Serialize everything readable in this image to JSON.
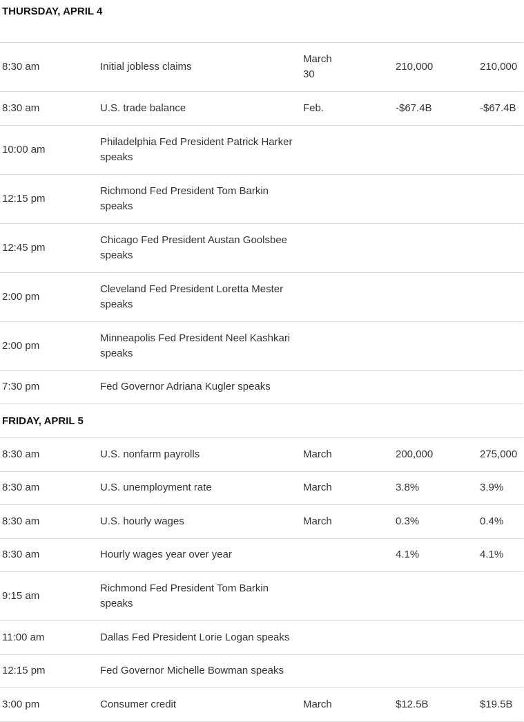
{
  "days": [
    {
      "title": "THURSDAY, APRIL 4",
      "rows": [
        {
          "time": "8:30 am",
          "event": "Initial jobless claims",
          "period": "March 30",
          "forecast": "210,000",
          "previous": "210,000"
        },
        {
          "time": "8:30 am",
          "event": "U.S. trade balance",
          "period": "Feb.",
          "forecast": "-$67.4B",
          "previous": "-$67.4B"
        },
        {
          "time": "10:00 am",
          "event": "Philadelphia Fed President Patrick Harker speaks",
          "period": "",
          "forecast": "",
          "previous": ""
        },
        {
          "time": "12:15 pm",
          "event": "Richmond Fed President Tom Barkin speaks",
          "period": "",
          "forecast": "",
          "previous": ""
        },
        {
          "time": "12:45 pm",
          "event": "Chicago Fed President Austan Goolsbee speaks",
          "period": "",
          "forecast": "",
          "previous": ""
        },
        {
          "time": "2:00 pm",
          "event": "Cleveland Fed President Loretta Mester speaks",
          "period": "",
          "forecast": "",
          "previous": ""
        },
        {
          "time": "2:00 pm",
          "event": "Minneapolis Fed President Neel Kashkari speaks",
          "period": "",
          "forecast": "",
          "previous": ""
        },
        {
          "time": "7:30 pm",
          "event": "Fed Governor Adriana Kugler speaks",
          "period": "",
          "forecast": "",
          "previous": ""
        }
      ]
    },
    {
      "title": "FRIDAY, APRIL 5",
      "rows": [
        {
          "time": "8:30 am",
          "event": "U.S. nonfarm payrolls",
          "period": "March",
          "forecast": "200,000",
          "previous": "275,000"
        },
        {
          "time": "8:30 am",
          "event": "U.S. unemployment rate",
          "period": "March",
          "forecast": "3.8%",
          "previous": "3.9%"
        },
        {
          "time": "8:30 am",
          "event": "U.S. hourly wages",
          "period": "March",
          "forecast": "0.3%",
          "previous": "0.4%"
        },
        {
          "time": "8:30 am",
          "event": "Hourly wages year over year",
          "period": "",
          "forecast": "4.1%",
          "previous": "4.1%"
        },
        {
          "time": "9:15 am",
          "event": "Richmond Fed President Tom Barkin speaks",
          "period": "",
          "forecast": "",
          "previous": ""
        },
        {
          "time": "11:00 am",
          "event": "Dallas Fed President Lorie Logan speaks",
          "period": "",
          "forecast": "",
          "previous": ""
        },
        {
          "time": "12:15 pm",
          "event": "Fed Governor Michelle Bowman speaks",
          "period": "",
          "forecast": "",
          "previous": ""
        },
        {
          "time": "3:00 pm",
          "event": "Consumer credit",
          "period": "March",
          "forecast": "$12.5B",
          "previous": "$19.5B"
        }
      ]
    }
  ]
}
